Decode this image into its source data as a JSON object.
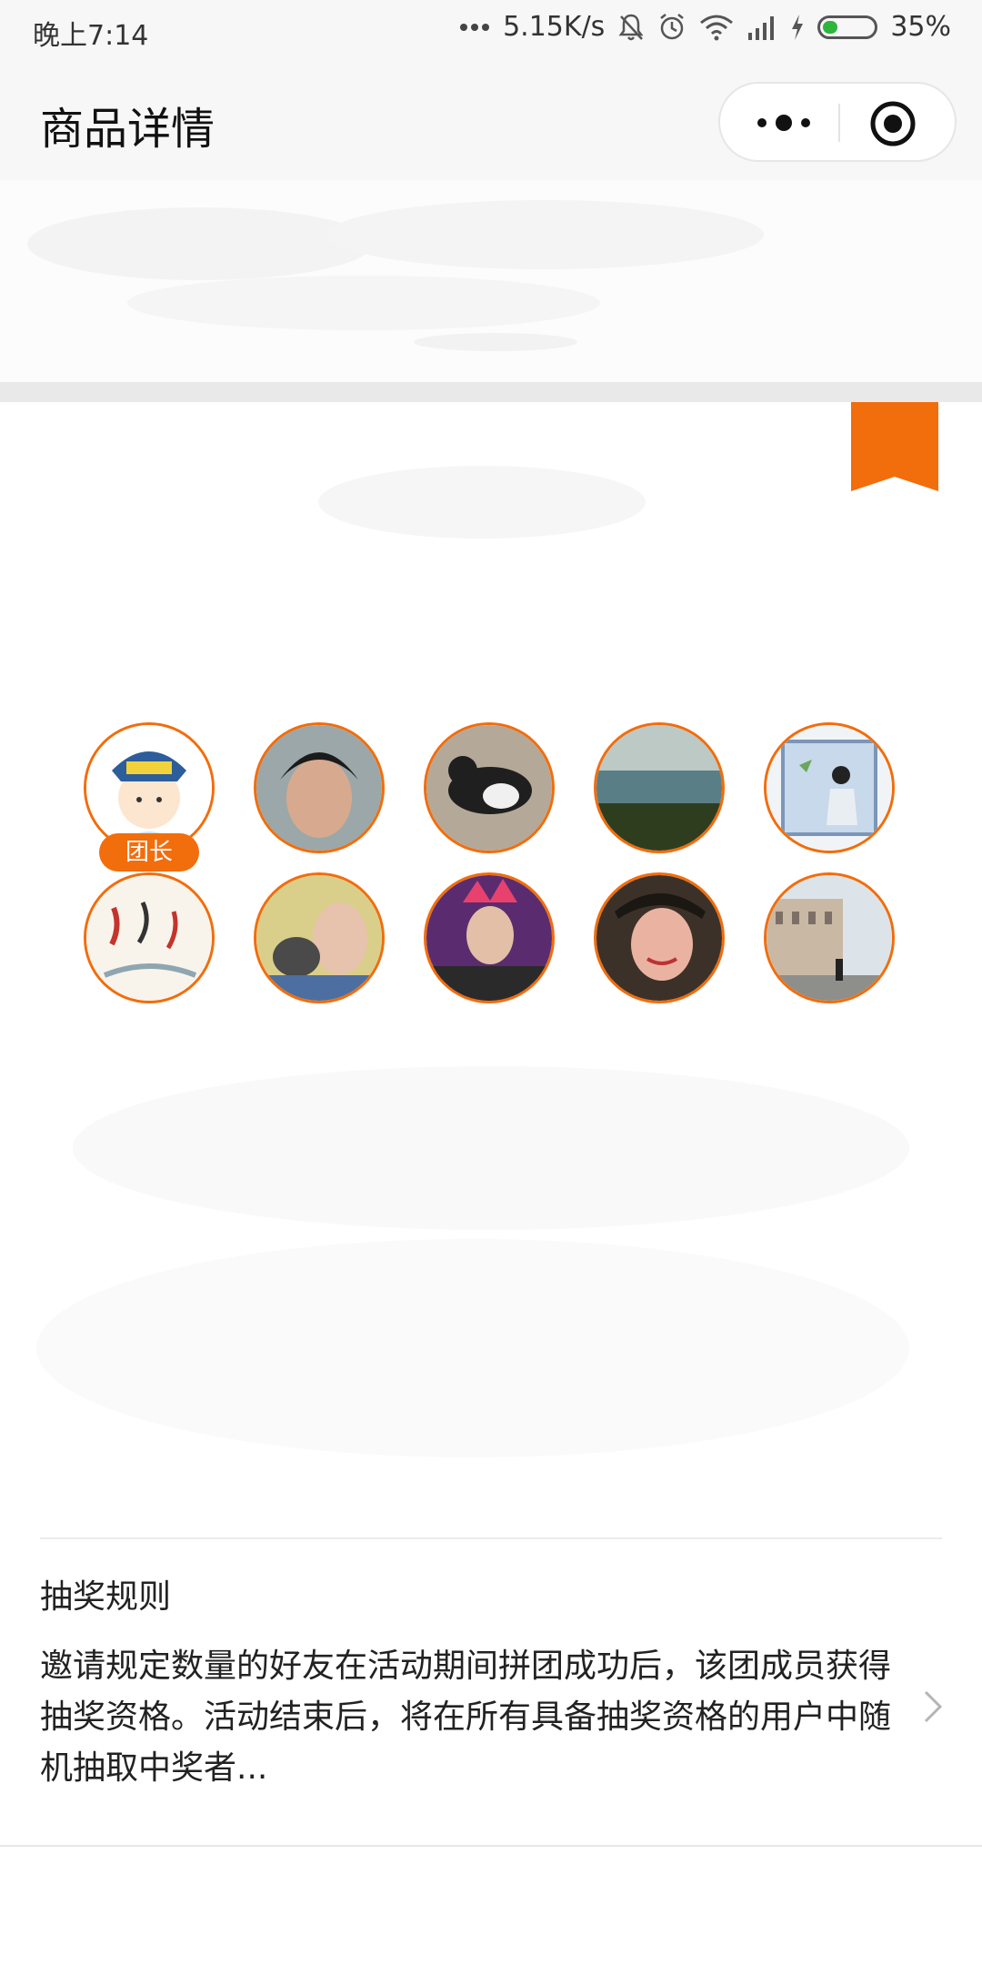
{
  "status_bar": {
    "time": "晚上7:14",
    "network_speed": "5.15K/s",
    "battery": "35%",
    "icons": [
      "more-dots-icon",
      "mute-bell-icon",
      "alarm-icon",
      "wifi-icon",
      "signal-icon",
      "charging-icon",
      "battery-icon"
    ]
  },
  "nav": {
    "title": "商品详情",
    "icons": [
      "more-menu-icon",
      "close-miniprogram-icon"
    ]
  },
  "colors": {
    "accent": "#f26d0c",
    "status_bg": "#f7f7f7"
  },
  "group": {
    "leader_label": "团长",
    "member_count": 10,
    "avatars": [
      "cartoon-character-avatar",
      "person-avatar",
      "cat-avatar",
      "landscape-avatar",
      "illustration-window-avatar",
      "koi-fish-painting-avatar",
      "person-with-pet-avatar",
      "anime-character-avatar",
      "smiling-person-avatar",
      "street-building-avatar"
    ]
  },
  "rules": {
    "title": "抽奖规则",
    "text": "邀请规定数量的好友在活动期间拼团成功后，该团成员获得抽奖资格。活动结束后，将在所有具备抽奖资格的用户中随机抽取中奖者..."
  }
}
